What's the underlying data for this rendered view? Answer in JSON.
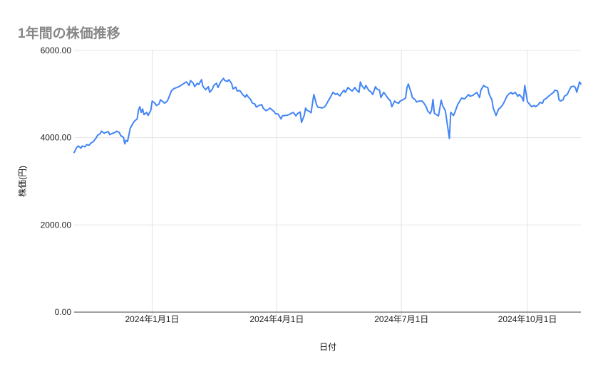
{
  "page": {
    "background": "#ffffff"
  },
  "style": {
    "line_color": "#4285f4",
    "grid_color": "#e3e3e3",
    "axis_line_color": "#424242",
    "title_color": "#878787",
    "tick_label_color": "#1b1b1b"
  },
  "chart_data": {
    "type": "line",
    "title": "1年間の株価推移",
    "xlabel": "日付",
    "ylabel": "株価(円)",
    "ylim": [
      0,
      6000
    ],
    "grid": true,
    "legend_position": "none",
    "x_range": [
      "2023-11-05",
      "2024-11-09"
    ],
    "y_ticks": [
      {
        "value": 0,
        "label": "0.00"
      },
      {
        "value": 2000,
        "label": "2000.00"
      },
      {
        "value": 4000,
        "label": "4000.00"
      },
      {
        "value": 6000,
        "label": "6000.00"
      }
    ],
    "x_ticks": [
      {
        "date": "2024-01-01",
        "label": "2024年1月1日"
      },
      {
        "date": "2024-04-01",
        "label": "2024年4月1日"
      },
      {
        "date": "2024-07-01",
        "label": "2024年7月1日"
      },
      {
        "date": "2024-10-01",
        "label": "2024年10月1日"
      }
    ],
    "series": [
      {
        "color": "#4285f4",
        "points": [
          [
            "2023-11-05",
            3660
          ],
          [
            "2023-11-07",
            3780
          ],
          [
            "2023-11-08",
            3810
          ],
          [
            "2023-11-10",
            3760
          ],
          [
            "2023-11-11",
            3810
          ],
          [
            "2023-11-13",
            3790
          ],
          [
            "2023-11-14",
            3840
          ],
          [
            "2023-11-16",
            3830
          ],
          [
            "2023-11-17",
            3870
          ],
          [
            "2023-11-19",
            3910
          ],
          [
            "2023-11-21",
            3990
          ],
          [
            "2023-11-22",
            4050
          ],
          [
            "2023-11-24",
            4090
          ],
          [
            "2023-11-25",
            4150
          ],
          [
            "2023-11-27",
            4100
          ],
          [
            "2023-11-28",
            4120
          ],
          [
            "2023-11-30",
            4140
          ],
          [
            "2023-12-01",
            4070
          ],
          [
            "2023-12-03",
            4100
          ],
          [
            "2023-12-05",
            4120
          ],
          [
            "2023-12-06",
            4150
          ],
          [
            "2023-12-08",
            4120
          ],
          [
            "2023-12-09",
            4050
          ],
          [
            "2023-12-11",
            4010
          ],
          [
            "2023-12-12",
            3860
          ],
          [
            "2023-12-13",
            3940
          ],
          [
            "2023-12-14",
            3910
          ],
          [
            "2023-12-16",
            4220
          ],
          [
            "2023-12-18",
            4330
          ],
          [
            "2023-12-19",
            4380
          ],
          [
            "2023-12-21",
            4430
          ],
          [
            "2023-12-22",
            4630
          ],
          [
            "2023-12-23",
            4710
          ],
          [
            "2023-12-24",
            4580
          ],
          [
            "2023-12-25",
            4660
          ],
          [
            "2023-12-26",
            4530
          ],
          [
            "2023-12-28",
            4580
          ],
          [
            "2023-12-29",
            4510
          ],
          [
            "2023-12-31",
            4630
          ],
          [
            "2024-01-01",
            4840
          ],
          [
            "2024-01-03",
            4790
          ],
          [
            "2024-01-04",
            4740
          ],
          [
            "2024-01-06",
            4770
          ],
          [
            "2024-01-07",
            4870
          ],
          [
            "2024-01-09",
            4820
          ],
          [
            "2024-01-10",
            4790
          ],
          [
            "2024-01-12",
            4840
          ],
          [
            "2024-01-13",
            4910
          ],
          [
            "2024-01-15",
            5070
          ],
          [
            "2024-01-17",
            5130
          ],
          [
            "2024-01-19",
            5150
          ],
          [
            "2024-01-21",
            5180
          ],
          [
            "2024-01-23",
            5220
          ],
          [
            "2024-01-26",
            5280
          ],
          [
            "2024-01-28",
            5200
          ],
          [
            "2024-01-29",
            5310
          ],
          [
            "2024-01-31",
            5250
          ],
          [
            "2024-02-01",
            5170
          ],
          [
            "2024-02-03",
            5250
          ],
          [
            "2024-02-04",
            5220
          ],
          [
            "2024-02-06",
            5330
          ],
          [
            "2024-02-07",
            5180
          ],
          [
            "2024-02-09",
            5100
          ],
          [
            "2024-02-11",
            5170
          ],
          [
            "2024-02-12",
            5040
          ],
          [
            "2024-02-14",
            5120
          ],
          [
            "2024-02-15",
            5200
          ],
          [
            "2024-02-17",
            5250
          ],
          [
            "2024-02-18",
            5150
          ],
          [
            "2024-02-20",
            5280
          ],
          [
            "2024-02-22",
            5360
          ],
          [
            "2024-02-23",
            5310
          ],
          [
            "2024-02-25",
            5290
          ],
          [
            "2024-02-26",
            5330
          ],
          [
            "2024-02-28",
            5240
          ],
          [
            "2024-02-29",
            5120
          ],
          [
            "2024-03-02",
            5160
          ],
          [
            "2024-03-03",
            5070
          ],
          [
            "2024-03-05",
            5080
          ],
          [
            "2024-03-07",
            4990
          ],
          [
            "2024-03-09",
            4930
          ],
          [
            "2024-03-10",
            4990
          ],
          [
            "2024-03-11",
            4940
          ],
          [
            "2024-03-13",
            4870
          ],
          [
            "2024-03-14",
            4800
          ],
          [
            "2024-03-16",
            4770
          ],
          [
            "2024-03-17",
            4700
          ],
          [
            "2024-03-19",
            4740
          ],
          [
            "2024-03-21",
            4760
          ],
          [
            "2024-03-22",
            4680
          ],
          [
            "2024-03-24",
            4620
          ],
          [
            "2024-03-25",
            4630
          ],
          [
            "2024-03-27",
            4680
          ],
          [
            "2024-03-28",
            4650
          ],
          [
            "2024-03-30",
            4600
          ],
          [
            "2024-03-31",
            4550
          ],
          [
            "2024-04-02",
            4540
          ],
          [
            "2024-04-04",
            4430
          ],
          [
            "2024-04-05",
            4500
          ],
          [
            "2024-04-07",
            4510
          ],
          [
            "2024-04-08",
            4510
          ],
          [
            "2024-04-10",
            4530
          ],
          [
            "2024-04-11",
            4550
          ],
          [
            "2024-04-13",
            4580
          ],
          [
            "2024-04-15",
            4500
          ],
          [
            "2024-04-16",
            4550
          ],
          [
            "2024-04-18",
            4590
          ],
          [
            "2024-04-19",
            4350
          ],
          [
            "2024-04-21",
            4510
          ],
          [
            "2024-04-22",
            4680
          ],
          [
            "2024-04-23",
            4630
          ],
          [
            "2024-04-25",
            4600
          ],
          [
            "2024-04-26",
            4570
          ],
          [
            "2024-04-28",
            4990
          ],
          [
            "2024-04-30",
            4760
          ],
          [
            "2024-05-01",
            4700
          ],
          [
            "2024-05-03",
            4690
          ],
          [
            "2024-05-04",
            4680
          ],
          [
            "2024-05-06",
            4710
          ],
          [
            "2024-05-07",
            4760
          ],
          [
            "2024-05-09",
            4870
          ],
          [
            "2024-05-10",
            4920
          ],
          [
            "2024-05-12",
            5040
          ],
          [
            "2024-05-14",
            4990
          ],
          [
            "2024-05-15",
            5010
          ],
          [
            "2024-05-17",
            4960
          ],
          [
            "2024-05-18",
            5010
          ],
          [
            "2024-05-20",
            5090
          ],
          [
            "2024-05-21",
            5040
          ],
          [
            "2024-05-23",
            5150
          ],
          [
            "2024-05-25",
            5090
          ],
          [
            "2024-05-26",
            5070
          ],
          [
            "2024-05-28",
            5150
          ],
          [
            "2024-05-29",
            5100
          ],
          [
            "2024-05-31",
            5040
          ],
          [
            "2024-06-01",
            5280
          ],
          [
            "2024-06-02",
            5200
          ],
          [
            "2024-06-04",
            5120
          ],
          [
            "2024-06-05",
            5200
          ],
          [
            "2024-06-07",
            5090
          ],
          [
            "2024-06-09",
            5040
          ],
          [
            "2024-06-10",
            4990
          ],
          [
            "2024-06-12",
            5170
          ],
          [
            "2024-06-13",
            5120
          ],
          [
            "2024-06-15",
            5090
          ],
          [
            "2024-06-16",
            4920
          ],
          [
            "2024-06-18",
            5040
          ],
          [
            "2024-06-19",
            5000
          ],
          [
            "2024-06-21",
            4910
          ],
          [
            "2024-06-23",
            4840
          ],
          [
            "2024-06-24",
            4710
          ],
          [
            "2024-06-26",
            4840
          ],
          [
            "2024-06-27",
            4810
          ],
          [
            "2024-06-29",
            4790
          ],
          [
            "2024-06-30",
            4840
          ],
          [
            "2024-07-02",
            4870
          ],
          [
            "2024-07-04",
            4910
          ],
          [
            "2024-07-05",
            5150
          ],
          [
            "2024-07-06",
            5230
          ],
          [
            "2024-07-08",
            5040
          ],
          [
            "2024-07-09",
            4920
          ],
          [
            "2024-07-11",
            4870
          ],
          [
            "2024-07-12",
            4820
          ],
          [
            "2024-07-14",
            4840
          ],
          [
            "2024-07-16",
            4840
          ],
          [
            "2024-07-17",
            4810
          ],
          [
            "2024-07-19",
            4710
          ],
          [
            "2024-07-20",
            4620
          ],
          [
            "2024-07-22",
            4550
          ],
          [
            "2024-07-23",
            4630
          ],
          [
            "2024-07-24",
            4880
          ],
          [
            "2024-07-25",
            4560
          ],
          [
            "2024-07-27",
            4520
          ],
          [
            "2024-07-28",
            4500
          ],
          [
            "2024-07-30",
            4860
          ],
          [
            "2024-07-31",
            4740
          ],
          [
            "2024-08-01",
            4680
          ],
          [
            "2024-08-02",
            4620
          ],
          [
            "2024-08-05",
            3980
          ],
          [
            "2024-08-06",
            4580
          ],
          [
            "2024-08-08",
            4510
          ],
          [
            "2024-08-09",
            4580
          ],
          [
            "2024-08-11",
            4760
          ],
          [
            "2024-08-13",
            4860
          ],
          [
            "2024-08-14",
            4910
          ],
          [
            "2024-08-16",
            4890
          ],
          [
            "2024-08-17",
            4920
          ],
          [
            "2024-08-19",
            4990
          ],
          [
            "2024-08-20",
            4950
          ],
          [
            "2024-08-22",
            4970
          ],
          [
            "2024-08-23",
            4990
          ],
          [
            "2024-08-25",
            5040
          ],
          [
            "2024-08-27",
            4920
          ],
          [
            "2024-08-28",
            5090
          ],
          [
            "2024-08-30",
            5200
          ],
          [
            "2024-08-31",
            5170
          ],
          [
            "2024-09-02",
            5150
          ],
          [
            "2024-09-03",
            5000
          ],
          [
            "2024-09-05",
            4870
          ],
          [
            "2024-09-06",
            4680
          ],
          [
            "2024-09-08",
            4510
          ],
          [
            "2024-09-10",
            4660
          ],
          [
            "2024-09-11",
            4680
          ],
          [
            "2024-09-13",
            4760
          ],
          [
            "2024-09-14",
            4820
          ],
          [
            "2024-09-16",
            4950
          ],
          [
            "2024-09-17",
            4990
          ],
          [
            "2024-09-19",
            5040
          ],
          [
            "2024-09-20",
            5000
          ],
          [
            "2024-09-22",
            5040
          ],
          [
            "2024-09-24",
            4950
          ],
          [
            "2024-09-25",
            4990
          ],
          [
            "2024-09-27",
            4920
          ],
          [
            "2024-09-28",
            4840
          ],
          [
            "2024-09-29",
            5200
          ],
          [
            "2024-10-01",
            4820
          ],
          [
            "2024-10-02",
            4790
          ],
          [
            "2024-10-04",
            4710
          ],
          [
            "2024-10-06",
            4740
          ],
          [
            "2024-10-07",
            4710
          ],
          [
            "2024-10-09",
            4760
          ],
          [
            "2024-10-10",
            4810
          ],
          [
            "2024-10-12",
            4790
          ],
          [
            "2024-10-13",
            4870
          ],
          [
            "2024-10-15",
            4910
          ],
          [
            "2024-10-16",
            4940
          ],
          [
            "2024-10-18",
            4990
          ],
          [
            "2024-10-20",
            5040
          ],
          [
            "2024-10-21",
            5090
          ],
          [
            "2024-10-23",
            5070
          ],
          [
            "2024-10-24",
            4870
          ],
          [
            "2024-10-25",
            4840
          ],
          [
            "2024-10-27",
            4870
          ],
          [
            "2024-10-28",
            4950
          ],
          [
            "2024-10-30",
            4990
          ],
          [
            "2024-11-01",
            5120
          ],
          [
            "2024-11-02",
            5170
          ],
          [
            "2024-11-04",
            5180
          ],
          [
            "2024-11-05",
            5150
          ],
          [
            "2024-11-06",
            5040
          ],
          [
            "2024-11-08",
            5280
          ],
          [
            "2024-11-09",
            5230
          ]
        ]
      }
    ]
  }
}
